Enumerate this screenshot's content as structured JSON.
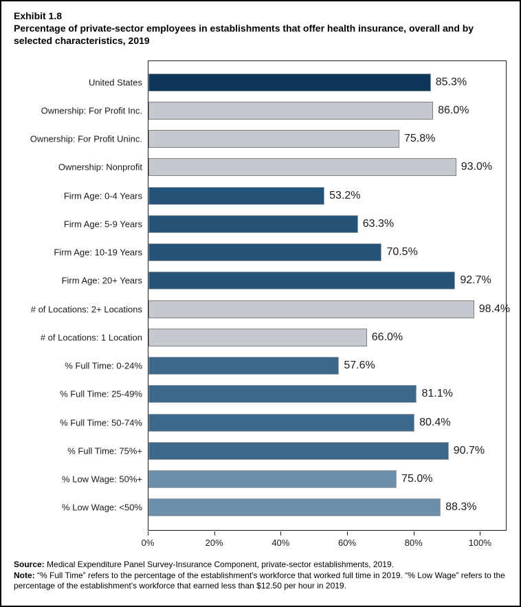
{
  "exhibit_label": "Exhibit 1.8",
  "title": "Percentage of private-sector employees in establishments that offer health insurance, overall and by selected characteristics, 2019",
  "chart_data": {
    "type": "bar",
    "orientation": "horizontal",
    "title": "Percentage of private-sector employees in establishments that offer health insurance, overall and by selected characteristics, 2019",
    "xlabel": "",
    "ylabel": "",
    "xlim": [
      0,
      108
    ],
    "grid": false,
    "legend": false,
    "x_ticks": [
      {
        "value": 0,
        "label": "0%"
      },
      {
        "value": 20,
        "label": "20%"
      },
      {
        "value": 40,
        "label": "40%"
      },
      {
        "value": 60,
        "label": "60%"
      },
      {
        "value": 80,
        "label": "80%"
      },
      {
        "value": 100,
        "label": "100%"
      }
    ],
    "categories": [
      "United States",
      "Ownership: For Profit Inc.",
      "Ownership: For Profit Uninc.",
      "Ownership: Nonprofit",
      "Firm Age: 0-4 Years",
      "Firm Age: 5-9 Years",
      "Firm Age: 10-19 Years",
      "Firm Age: 20+ Years",
      "# of Locations: 2+ Locations",
      "# of Locations: 1 Location",
      "% Full Time: 0-24%",
      "% Full Time: 25-49%",
      "% Full Time: 50-74%",
      "% Full Time: 75%+",
      "% Low Wage: 50%+",
      "% Low Wage: <50%"
    ],
    "values": [
      85.3,
      86.0,
      75.8,
      93.0,
      53.2,
      63.3,
      70.5,
      92.7,
      98.4,
      66.0,
      57.6,
      81.1,
      80.4,
      90.7,
      75.0,
      88.3
    ],
    "items": [
      {
        "label": "United States",
        "value": 85.3,
        "display": "85.3%",
        "group": "us"
      },
      {
        "label": "Ownership: For Profit Inc.",
        "value": 86.0,
        "display": "86.0%",
        "group": "gray"
      },
      {
        "label": "Ownership: For Profit Uninc.",
        "value": 75.8,
        "display": "75.8%",
        "group": "gray"
      },
      {
        "label": "Ownership: Nonprofit",
        "value": 93.0,
        "display": "93.0%",
        "group": "gray"
      },
      {
        "label": "Firm Age: 0-4 Years",
        "value": 53.2,
        "display": "53.2%",
        "group": "firm_age"
      },
      {
        "label": "Firm Age: 5-9 Years",
        "value": 63.3,
        "display": "63.3%",
        "group": "firm_age"
      },
      {
        "label": "Firm Age: 10-19 Years",
        "value": 70.5,
        "display": "70.5%",
        "group": "firm_age"
      },
      {
        "label": "Firm Age: 20+ Years",
        "value": 92.7,
        "display": "92.7%",
        "group": "firm_age"
      },
      {
        "label": "# of Locations: 2+ Locations",
        "value": 98.4,
        "display": "98.4%",
        "group": "gray"
      },
      {
        "label": "# of Locations: 1 Location",
        "value": 66.0,
        "display": "66.0%",
        "group": "gray"
      },
      {
        "label": "% Full Time: 0-24%",
        "value": 57.6,
        "display": "57.6%",
        "group": "full_time"
      },
      {
        "label": "% Full Time: 25-49%",
        "value": 81.1,
        "display": "81.1%",
        "group": "full_time"
      },
      {
        "label": "% Full Time: 50-74%",
        "value": 80.4,
        "display": "80.4%",
        "group": "full_time"
      },
      {
        "label": "% Full Time: 75%+",
        "value": 90.7,
        "display": "90.7%",
        "group": "full_time"
      },
      {
        "label": "% Low Wage: 50%+",
        "value": 75.0,
        "display": "75.0%",
        "group": "low_wage"
      },
      {
        "label": "% Low Wage: <50%",
        "value": 88.3,
        "display": "88.3%",
        "group": "low_wage"
      }
    ],
    "colors": {
      "us": {
        "fill": "#0C3557",
        "border": "#8A99A7"
      },
      "gray": {
        "fill": "#C4C9CF",
        "border": "#7F7F7F"
      },
      "firm_age": {
        "fill": "#265478",
        "border": "#9AA8B4"
      },
      "full_time": {
        "fill": "#3C688C",
        "border": "#9AA8B4"
      },
      "low_wage": {
        "fill": "#6B8EAB",
        "border": "#9AA8B4"
      }
    }
  },
  "footer": {
    "source_label": "Source:",
    "source_text": " Medical Expenditure Panel Survey-Insurance Component, private-sector establishments, 2019.",
    "note_label": "Note:",
    "note_text": " “% Full Time” refers to the percentage of the establishment's workforce that worked full time in 2019. “% Low Wage” refers to the percentage of the establishment's workforce that earned less than $12.50 per hour in 2019."
  }
}
